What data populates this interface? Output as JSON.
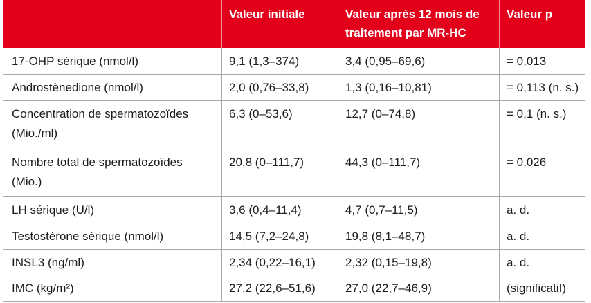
{
  "colors": {
    "header_background": "#e2001a",
    "header_text": "#ffffff",
    "border": "#a8a8a8",
    "body_text": "#1d1d1b"
  },
  "table": {
    "columns": {
      "initial": "Valeur initiale",
      "after_12_months": "Valeur après 12 mois de traitement par MR-HC",
      "p_value": "Valeur p"
    },
    "rows": [
      {
        "parameter": "17-OHP sérique (nmol/l)",
        "initial": "9,1 (1,3–374)",
        "after_12_months": "3,4 (0,95–69,6)",
        "p_value": "= 0,013"
      },
      {
        "parameter": "Androstènedione (nmol/l)",
        "initial": "2,0 (0,76–33,8)",
        "after_12_months": "1,3 (0,16–10,81)",
        "p_value": "= 0,113 (n. s.)"
      },
      {
        "parameter": "Concentration de spermatozoïdes (Mio./ml)",
        "initial": "6,3 (0–53,6)",
        "after_12_months": "12,7 (0–74,8)",
        "p_value": "= 0,1 (n. s.)"
      },
      {
        "parameter": "Nombre total de spermatozoïdes (Mio.)",
        "initial": "20,8 (0–111,7)",
        "after_12_months": "44,3 (0–111,7)",
        "p_value": "= 0,026"
      },
      {
        "parameter": "LH sérique (U/l)",
        "initial": "3,6 (0,4–11,4)",
        "after_12_months": "4,7 (0,7–11,5)",
        "p_value": "a. d."
      },
      {
        "parameter": "Testostérone sérique (nmol/l)",
        "initial": "14,5 (7,2–24,8)",
        "after_12_months": "19,8 (8,1–48,7)",
        "p_value": "a. d."
      },
      {
        "parameter": "INSL3 (ng/ml)",
        "initial": "2,34 (0,22–16,1)",
        "after_12_months": "2,32 (0,15–19,8)",
        "p_value": "a. d."
      },
      {
        "parameter": "IMC (kg/m²)",
        "initial": "27,2 (22,6–51,6)",
        "after_12_months": "27,0 (22,7–46,9)",
        "p_value": "(significatif)"
      }
    ]
  }
}
